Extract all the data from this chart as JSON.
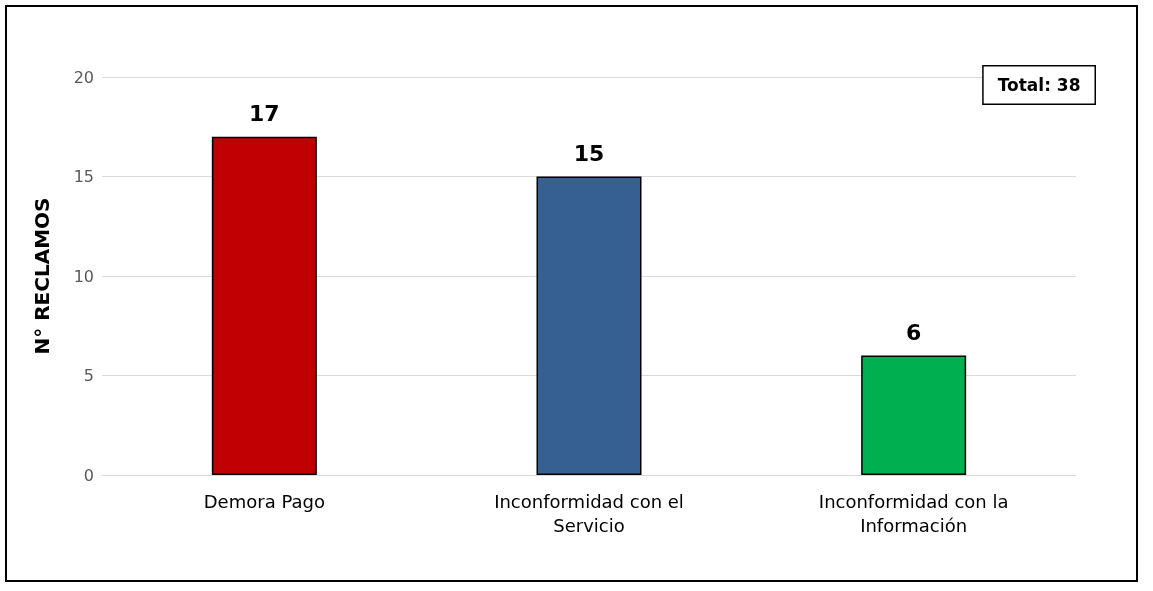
{
  "chart_data": {
    "type": "bar",
    "ylabel": "N° RECLAMOS",
    "categories": [
      "Demora Pago",
      "Inconformidad con el\nServicio",
      "Inconformidad con la\nInformación"
    ],
    "values": [
      17,
      15,
      6
    ],
    "colors": [
      "#c00000",
      "#376092",
      "#00b050"
    ],
    "ylim": [
      0,
      20
    ],
    "yticks": [
      0,
      5,
      10,
      15,
      20
    ],
    "grid": "y",
    "data_labels": true,
    "annotations": [
      "Total: 38"
    ]
  }
}
